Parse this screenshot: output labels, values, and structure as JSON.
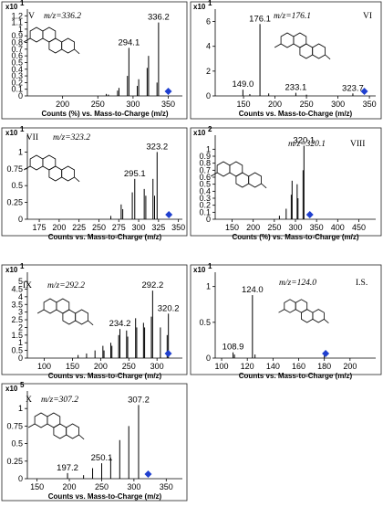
{
  "chart_data": [
    {
      "id": "V",
      "type": "bar",
      "label": "V",
      "mz_label": "m/z=336.2",
      "scale_label": "x10",
      "scale_exp": "1",
      "xlabel": "Counts (%) vs. Mass-to-Charge (m/z)",
      "xlim": [
        150,
        370
      ],
      "ylim": [
        0,
        1.3
      ],
      "xticks": [
        "200",
        "250",
        "300",
        "350"
      ],
      "yticks": [
        "0",
        "0.1",
        "0.2",
        "0.3",
        "0.4",
        "0.5",
        "0.6",
        "0.7",
        "0.8",
        "0.9",
        "1",
        "1.1",
        "1.2"
      ],
      "peaks": [
        [
          262,
          0.03
        ],
        [
          265,
          0.02
        ],
        [
          278,
          0.08
        ],
        [
          280,
          0.12
        ],
        [
          292,
          0.3
        ],
        [
          294.1,
          0.72
        ],
        [
          306,
          0.15
        ],
        [
          308,
          0.25
        ],
        [
          320,
          0.42
        ],
        [
          322,
          0.6
        ],
        [
          334,
          0.2
        ],
        [
          336.2,
          1.1
        ]
      ],
      "annotations": [
        {
          "x": 294.1,
          "y": 0.72,
          "text": "294.1"
        },
        {
          "x": 336.2,
          "y": 1.1,
          "text": "336.2"
        }
      ],
      "precursor": 350
    },
    {
      "id": "VI",
      "type": "bar",
      "label": "VI",
      "mz_label": "m/z=176.1",
      "scale_label": "x10",
      "scale_exp": "1",
      "xlabel": "Counts vs. Mass-to-Charge (m/z)",
      "xlim": [
        105,
        360
      ],
      "ylim": [
        0,
        7
      ],
      "xticks": [
        "150",
        "200",
        "250",
        "300",
        "350"
      ],
      "yticks": [
        "0",
        "2",
        "4",
        "6"
      ],
      "peaks": [
        [
          149,
          0.5
        ],
        [
          160,
          0.15
        ],
        [
          176.1,
          5.8
        ],
        [
          190,
          0.2
        ],
        [
          233.1,
          0.25
        ],
        [
          250,
          0.1
        ],
        [
          323.7,
          0.2
        ]
      ],
      "annotations": [
        {
          "x": 149,
          "y": 0.5,
          "text": "149.0"
        },
        {
          "x": 176.1,
          "y": 5.8,
          "text": "176.1"
        },
        {
          "x": 233.1,
          "y": 0.25,
          "text": "233.1"
        },
        {
          "x": 323.7,
          "y": 0.2,
          "text": "323.7"
        }
      ],
      "precursor": 342
    },
    {
      "id": "VII",
      "type": "bar",
      "label": "VII",
      "mz_label": "m/z=323.2",
      "scale_label": "x10",
      "scale_exp": "1",
      "xlabel": "Counts vs. Mass-to-Charge (m/z)",
      "xlim": [
        160,
        355
      ],
      "ylim": [
        0,
        1.25
      ],
      "xticks": [
        "175",
        "200",
        "225",
        "250",
        "275",
        "300",
        "325",
        "350"
      ],
      "yticks": [
        "0",
        "0.25",
        "0.5",
        "0.75",
        "1"
      ],
      "peaks": [
        [
          265,
          0.05
        ],
        [
          278,
          0.22
        ],
        [
          280,
          0.15
        ],
        [
          292,
          0.4
        ],
        [
          295.1,
          0.6
        ],
        [
          307,
          0.45
        ],
        [
          309,
          0.35
        ],
        [
          318,
          0.6
        ],
        [
          320,
          0.35
        ],
        [
          323.2,
          1.0
        ]
      ],
      "annotations": [
        {
          "x": 295.1,
          "y": 0.6,
          "text": "295.1"
        },
        {
          "x": 323.2,
          "y": 1.0,
          "text": "323.2"
        }
      ],
      "precursor": 338
    },
    {
      "id": "VIII",
      "type": "bar",
      "label": "VIII",
      "mz_label": "m/z=320.1",
      "scale_label": "x10",
      "scale_exp": "2",
      "xlabel": "Counts (%) vs. Mass-to-Charge (m/z)",
      "xlim": [
        110,
        490
      ],
      "ylim": [
        0,
        1.2
      ],
      "xticks": [
        "150",
        "200",
        "250",
        "300",
        "350",
        "400",
        "450"
      ],
      "yticks": [
        "0",
        "0.1",
        "0.2",
        "0.3",
        "0.4",
        "0.5",
        "0.6",
        "0.7",
        "0.8",
        "0.9",
        "1"
      ],
      "peaks": [
        [
          262,
          0.05
        ],
        [
          278,
          0.15
        ],
        [
          290,
          0.35
        ],
        [
          292,
          0.55
        ],
        [
          304,
          0.5
        ],
        [
          306,
          0.3
        ],
        [
          318,
          0.7
        ],
        [
          320.1,
          1.05
        ]
      ],
      "annotations": [
        {
          "x": 320.1,
          "y": 1.05,
          "text": "320.1"
        }
      ],
      "precursor": 334
    },
    {
      "id": "IX",
      "type": "bar",
      "label": "IX",
      "mz_label": "m/z=292.2",
      "scale_label": "x10",
      "scale_exp": "1",
      "xlabel": "Counts vs. Mass-to-Charge (m/z)",
      "xlim": [
        70,
        345
      ],
      "ylim": [
        0,
        5.6
      ],
      "xticks": [
        "100",
        "150",
        "200",
        "250",
        "300"
      ],
      "yticks": [
        "0",
        "0.5",
        "1",
        "1.5",
        "2",
        "2.5",
        "3",
        "3.5",
        "4",
        "4.5",
        "5"
      ],
      "peaks": [
        [
          160,
          0.2
        ],
        [
          175,
          0.3
        ],
        [
          190,
          0.5
        ],
        [
          204,
          0.8
        ],
        [
          206,
          0.5
        ],
        [
          218,
          1.0
        ],
        [
          220,
          0.8
        ],
        [
          232,
          1.5
        ],
        [
          234.2,
          1.9
        ],
        [
          246,
          1.8
        ],
        [
          248,
          1.4
        ],
        [
          262,
          2.6
        ],
        [
          264,
          2.0
        ],
        [
          276,
          2.3
        ],
        [
          278,
          2.0
        ],
        [
          290,
          2.7
        ],
        [
          292.2,
          4.4
        ],
        [
          306,
          2.0
        ],
        [
          318,
          1.5
        ],
        [
          320.2,
          2.9
        ]
      ],
      "annotations": [
        {
          "x": 234.2,
          "y": 1.9,
          "text": "234.2"
        },
        {
          "x": 292.2,
          "y": 4.4,
          "text": "292.2"
        },
        {
          "x": 320.2,
          "y": 2.9,
          "text": "320.2"
        }
      ],
      "precursor": 320
    },
    {
      "id": "IS",
      "type": "bar",
      "label": "I.S.",
      "mz_label": "m/z=124.0",
      "scale_label": "x10",
      "scale_exp": "1",
      "xlabel": "Counts vs. Mass-to-Charge (m/z)",
      "xlim": [
        95,
        220
      ],
      "ylim": [
        0,
        1.2
      ],
      "xticks": [
        "100",
        "120",
        "140",
        "160",
        "180",
        "200"
      ],
      "yticks": [
        "0",
        "0.5",
        "1"
      ],
      "peaks": [
        [
          108.9,
          0.08
        ],
        [
          110,
          0.05
        ],
        [
          124,
          0.88
        ],
        [
          126,
          0.05
        ],
        [
          180,
          0.04
        ]
      ],
      "annotations": [
        {
          "x": 108.9,
          "y": 0.08,
          "text": "108.9"
        },
        {
          "x": 124,
          "y": 0.88,
          "text": "124.0"
        }
      ],
      "precursor": 181
    },
    {
      "id": "X",
      "type": "bar",
      "label": "X",
      "mz_label": "m/z=307.2",
      "scale_label": "x10",
      "scale_exp": "5",
      "xlabel": "Counts vs. Mass-to-Charge (m/z)",
      "xlim": [
        135,
        375
      ],
      "ylim": [
        0,
        1.25
      ],
      "xticks": [
        "150",
        "200",
        "250",
        "300",
        "350"
      ],
      "yticks": [
        "0",
        "0.25",
        "0.5",
        "0.75",
        "1"
      ],
      "peaks": [
        [
          197.2,
          0.08
        ],
        [
          222,
          0.05
        ],
        [
          236,
          0.15
        ],
        [
          250.1,
          0.22
        ],
        [
          264,
          0.3
        ],
        [
          278,
          0.55
        ],
        [
          292,
          0.75
        ],
        [
          307.2,
          1.05
        ]
      ],
      "annotations": [
        {
          "x": 197.2,
          "y": 0.08,
          "text": "197.2"
        },
        {
          "x": 250.1,
          "y": 0.22,
          "text": "250.1"
        },
        {
          "x": 307.2,
          "y": 1.05,
          "text": "307.2"
        }
      ],
      "precursor": 322
    }
  ],
  "colors": {
    "peak": "#000000",
    "precursor": "#1f3fcf",
    "frame": "#222222"
  }
}
